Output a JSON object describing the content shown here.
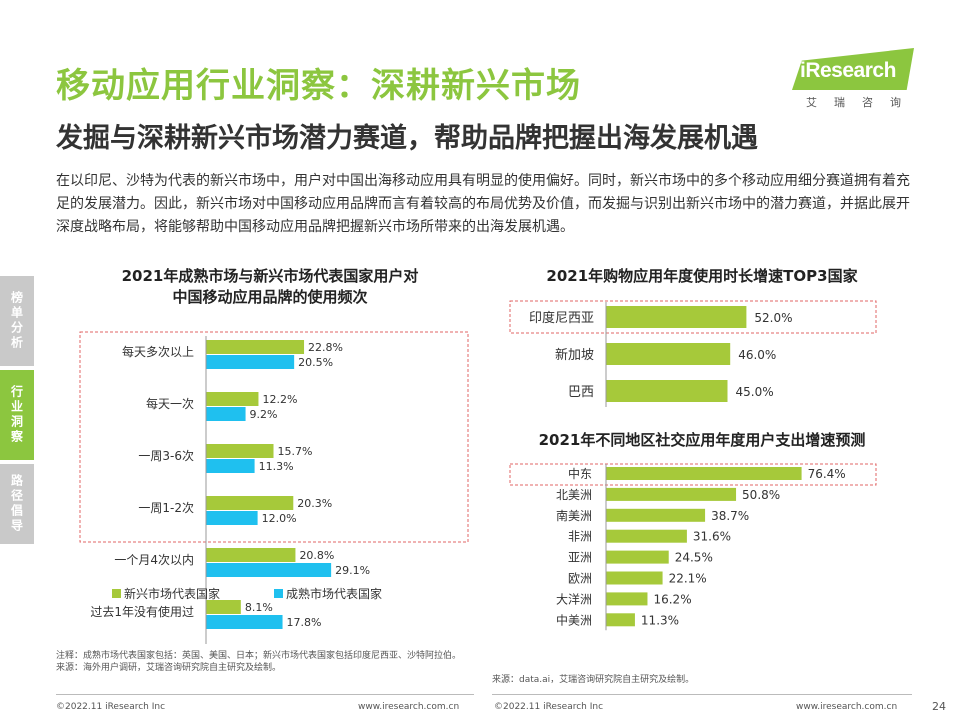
{
  "header": {
    "title": "移动应用行业洞察：深耕新兴市场",
    "subtitle": "发掘与深耕新兴市场潜力赛道，帮助品牌把握出海发展机遇",
    "intro": "在以印尼、沙特为代表的新兴市场中，用户对中国出海移动应用具有明显的使用偏好。同时，新兴市场中的多个移动应用细分赛道拥有着充足的发展潜力。因此，新兴市场对中国移动应用品牌而言有着较高的布局优势及价值，而发掘与识别出新兴市场中的潜力赛道，并据此展开深度战略布局，将能够帮助中国移动应用品牌把握新兴市场所带来的出海发展机遇。"
  },
  "logo": {
    "text": "iResearch",
    "cn": "艾瑞咨询"
  },
  "sidenav": [
    {
      "label": "榜单分析",
      "active": false
    },
    {
      "label": "行业洞察",
      "active": true
    },
    {
      "label": "路径倡导",
      "active": false
    }
  ],
  "colors": {
    "accent": "#8cc63f",
    "series_emerging": "#a6c93a",
    "series_mature": "#1fc0ef",
    "highlight_border": "#e06666"
  },
  "chart_data": [
    {
      "type": "bar",
      "orientation": "horizontal",
      "title": "2021年成熟市场与新兴市场代表国家用户对中国移动应用品牌的使用频次",
      "title_lines": [
        "2021年成熟市场与新兴市场代表国家用户对",
        "中国移动应用品牌的使用频次"
      ],
      "categories": [
        "每天多次以上",
        "每天一次",
        "一周3-6次",
        "一周1-2次",
        "一个月4次以内",
        "过去1年没有使用过"
      ],
      "series": [
        {
          "name": "新兴市场代表国家",
          "values": [
            22.8,
            12.2,
            15.7,
            20.3,
            20.8,
            8.1
          ]
        },
        {
          "name": "成熟市场代表国家",
          "values": [
            20.5,
            9.2,
            11.3,
            12.0,
            29.1,
            17.8
          ]
        }
      ],
      "value_labels": [
        [
          "22.8%",
          "12.2%",
          "15.7%",
          "20.3%",
          "20.8%",
          "8.1%"
        ],
        [
          "20.5%",
          "9.2%",
          "11.3%",
          "12.0%",
          "29.1%",
          "17.8%"
        ]
      ],
      "unit": "%",
      "legend": "bottom",
      "highlighted_categories": [
        "每天多次以上",
        "每天一次",
        "一周3-6次",
        "一周1-2次"
      ]
    },
    {
      "type": "bar",
      "orientation": "horizontal",
      "title": "2021年购物应用年度使用时长增速TOP3国家",
      "categories": [
        "印度尼西亚",
        "新加坡",
        "巴西"
      ],
      "values": [
        52.0,
        46.0,
        45.0
      ],
      "value_labels": [
        "52.0%",
        "46.0%",
        "45.0%"
      ],
      "unit": "%",
      "highlighted_categories": [
        "印度尼西亚"
      ]
    },
    {
      "type": "bar",
      "orientation": "horizontal",
      "title": "2021年不同地区社交应用年度用户支出增速预测",
      "categories": [
        "中东",
        "北美洲",
        "南美洲",
        "非洲",
        "亚洲",
        "欧洲",
        "大洋洲",
        "中美洲"
      ],
      "values": [
        76.4,
        50.8,
        38.7,
        31.6,
        24.5,
        22.1,
        16.2,
        11.3
      ],
      "value_labels": [
        "76.4%",
        "50.8%",
        "38.7%",
        "31.6%",
        "24.5%",
        "22.1%",
        "16.2%",
        "11.3%"
      ],
      "unit": "%",
      "highlighted_categories": [
        "中东"
      ]
    }
  ],
  "notes": {
    "left_note": "注释：成熟市场代表国家包括：英国、美国、日本；新兴市场代表国家包括印度尼西亚、沙特阿拉伯。",
    "left_source": "来源：海外用户调研，艾瑞咨询研究院自主研究及绘制。",
    "right_source": "来源：data.ai，艾瑞咨询研究院自主研究及绘制。"
  },
  "footer": {
    "copyright": "©2022.11 iResearch Inc",
    "website": "www.iresearch.com.cn",
    "page": "24"
  }
}
